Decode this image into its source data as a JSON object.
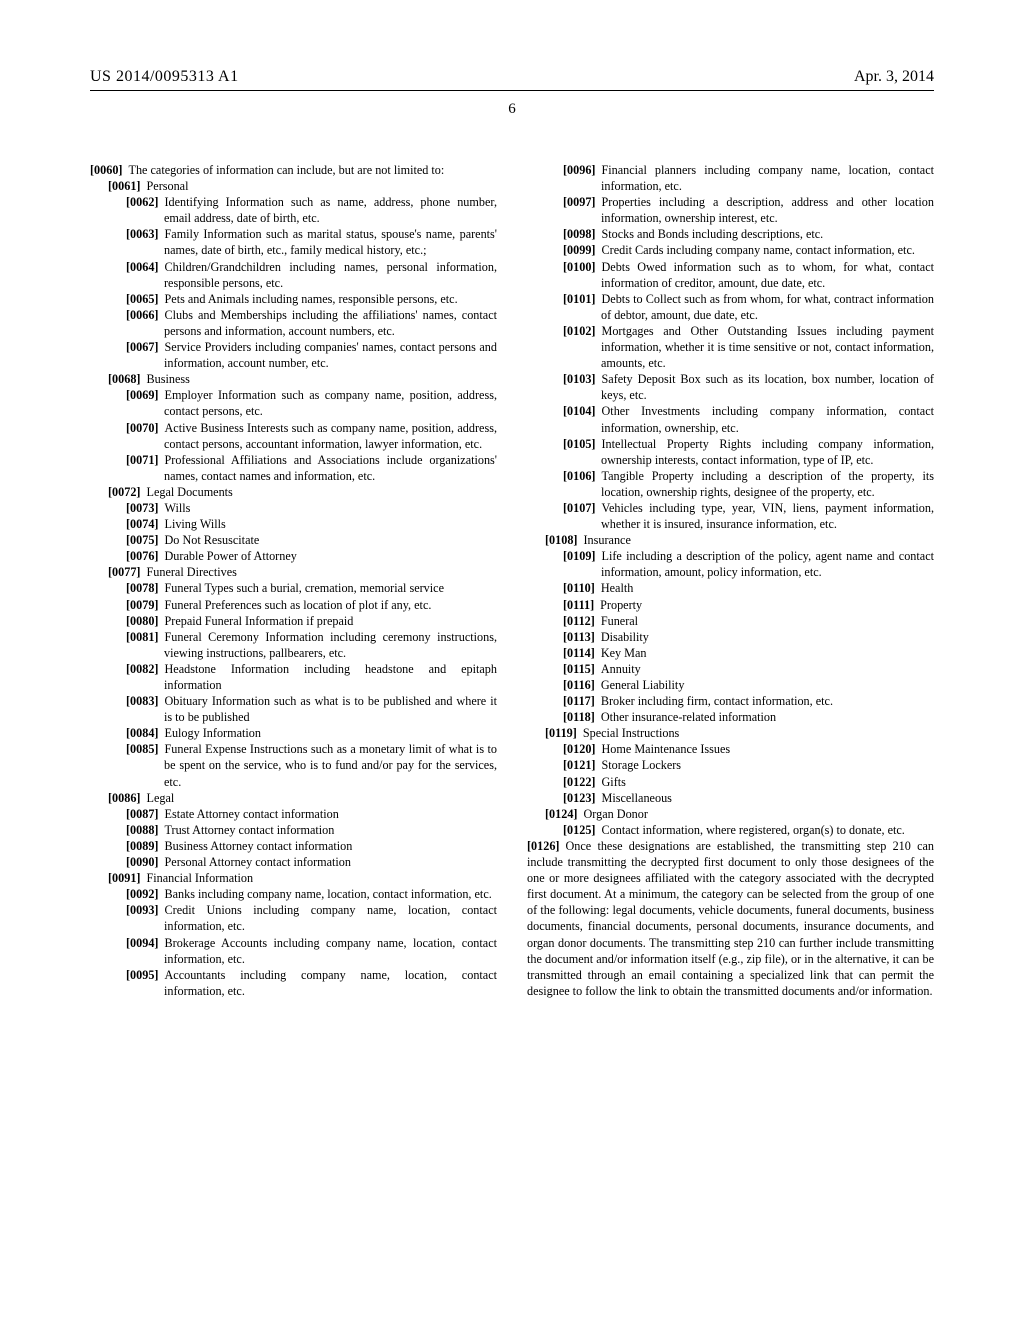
{
  "header": {
    "left": "US 2014/0095313 A1",
    "right": "Apr. 3, 2014",
    "page_number": "6"
  },
  "paragraphs": [
    {
      "num": "[0060]",
      "indent": 0,
      "hang": false,
      "text": "The categories of information can include, but are not limited to:"
    },
    {
      "num": "[0061]",
      "indent": 1,
      "hang": false,
      "text": "Personal"
    },
    {
      "num": "[0062]",
      "indent": 2,
      "hang": true,
      "text": "Identifying Information such as name, address, phone number, email address, date of birth, etc."
    },
    {
      "num": "[0063]",
      "indent": 2,
      "hang": true,
      "text": "Family Information such as marital status, spouse's name, parents' names, date of birth, etc., family medical history, etc.;"
    },
    {
      "num": "[0064]",
      "indent": 2,
      "hang": true,
      "text": "Children/Grandchildren including names, personal information, responsible persons, etc."
    },
    {
      "num": "[0065]",
      "indent": 2,
      "hang": true,
      "text": "Pets and Animals including names, responsible persons, etc."
    },
    {
      "num": "[0066]",
      "indent": 2,
      "hang": true,
      "text": "Clubs and Memberships including the affiliations' names, contact persons and information, account numbers, etc."
    },
    {
      "num": "[0067]",
      "indent": 2,
      "hang": true,
      "text": "Service Providers including companies' names, contact persons and information, account number, etc."
    },
    {
      "num": "[0068]",
      "indent": 1,
      "hang": false,
      "text": "Business"
    },
    {
      "num": "[0069]",
      "indent": 2,
      "hang": true,
      "text": "Employer Information such as company name, position, address, contact persons, etc."
    },
    {
      "num": "[0070]",
      "indent": 2,
      "hang": true,
      "text": "Active Business Interests such as company name, position, address, contact persons, accountant information, lawyer information, etc."
    },
    {
      "num": "[0071]",
      "indent": 2,
      "hang": true,
      "text": "Professional Affiliations and Associations include organizations' names, contact names and information, etc."
    },
    {
      "num": "[0072]",
      "indent": 1,
      "hang": false,
      "text": "Legal Documents"
    },
    {
      "num": "[0073]",
      "indent": 2,
      "hang": false,
      "text": "Wills"
    },
    {
      "num": "[0074]",
      "indent": 2,
      "hang": false,
      "text": "Living Wills"
    },
    {
      "num": "[0075]",
      "indent": 2,
      "hang": false,
      "text": "Do Not Resuscitate"
    },
    {
      "num": "[0076]",
      "indent": 2,
      "hang": false,
      "text": "Durable Power of Attorney"
    },
    {
      "num": "[0077]",
      "indent": 1,
      "hang": false,
      "text": "Funeral Directives"
    },
    {
      "num": "[0078]",
      "indent": 2,
      "hang": true,
      "text": "Funeral Types such a burial, cremation, memorial service"
    },
    {
      "num": "[0079]",
      "indent": 2,
      "hang": true,
      "text": "Funeral Preferences such as location of plot if any, etc."
    },
    {
      "num": "[0080]",
      "indent": 2,
      "hang": false,
      "text": "Prepaid Funeral Information if prepaid"
    },
    {
      "num": "[0081]",
      "indent": 2,
      "hang": true,
      "text": "Funeral Ceremony Information including ceremony instructions, viewing instructions, pallbearers, etc."
    },
    {
      "num": "[0082]",
      "indent": 2,
      "hang": true,
      "text": "Headstone Information including headstone and epitaph information"
    },
    {
      "num": "[0083]",
      "indent": 2,
      "hang": true,
      "text": "Obituary Information such as what is to be published and where it is to be published"
    },
    {
      "num": "[0084]",
      "indent": 2,
      "hang": false,
      "text": "Eulogy Information"
    },
    {
      "num": "[0085]",
      "indent": 2,
      "hang": true,
      "text": "Funeral Expense Instructions such as a monetary limit of what is to be spent on the service, who is to fund and/or pay for the services, etc."
    },
    {
      "num": "[0086]",
      "indent": 1,
      "hang": false,
      "text": "Legal"
    },
    {
      "num": "[0087]",
      "indent": 2,
      "hang": false,
      "text": "Estate Attorney contact information"
    },
    {
      "num": "[0088]",
      "indent": 2,
      "hang": false,
      "text": "Trust Attorney contact information"
    },
    {
      "num": "[0089]",
      "indent": 2,
      "hang": false,
      "text": "Business Attorney contact information"
    },
    {
      "num": "[0090]",
      "indent": 2,
      "hang": false,
      "text": "Personal Attorney contact information"
    },
    {
      "num": "[0091]",
      "indent": 1,
      "hang": false,
      "text": "Financial Information"
    },
    {
      "num": "[0092]",
      "indent": 2,
      "hang": true,
      "text": "Banks including company name, location, contact information, etc."
    },
    {
      "num": "[0093]",
      "indent": 2,
      "hang": true,
      "text": "Credit Unions including company name, location, contact information, etc."
    },
    {
      "num": "[0094]",
      "indent": 2,
      "hang": true,
      "text": "Brokerage Accounts including company name, location, contact information, etc."
    },
    {
      "num": "[0095]",
      "indent": 2,
      "hang": true,
      "text": "Accountants including company name, location, contact information, etc."
    },
    {
      "num": "[0096]",
      "indent": 2,
      "hang": true,
      "text": "Financial planners including company name, location, contact information, etc."
    },
    {
      "num": "[0097]",
      "indent": 2,
      "hang": true,
      "text": "Properties including a description, address and other location information, ownership interest, etc."
    },
    {
      "num": "[0098]",
      "indent": 2,
      "hang": false,
      "text": "Stocks and Bonds including descriptions, etc."
    },
    {
      "num": "[0099]",
      "indent": 2,
      "hang": true,
      "text": "Credit Cards including company name, contact information, etc."
    },
    {
      "num": "[0100]",
      "indent": 2,
      "hang": true,
      "text": "Debts Owed information such as to whom, for what, contact information of creditor, amount, due date, etc."
    },
    {
      "num": "[0101]",
      "indent": 2,
      "hang": true,
      "text": "Debts to Collect such as from whom, for what, contract information of debtor, amount, due date, etc."
    },
    {
      "num": "[0102]",
      "indent": 2,
      "hang": true,
      "text": "Mortgages and Other Outstanding Issues including payment information, whether it is time sensitive or not, contact information, amounts, etc."
    },
    {
      "num": "[0103]",
      "indent": 2,
      "hang": true,
      "text": "Safety Deposit Box such as its location, box number, location of keys, etc."
    },
    {
      "num": "[0104]",
      "indent": 2,
      "hang": true,
      "text": "Other Investments including company information, contact information, ownership, etc."
    },
    {
      "num": "[0105]",
      "indent": 2,
      "hang": true,
      "text": "Intellectual Property Rights including company information, ownership interests, contact information, type of IP, etc."
    },
    {
      "num": "[0106]",
      "indent": 2,
      "hang": true,
      "text": "Tangible Property including a description of the property, its location, ownership rights, designee of the property, etc."
    },
    {
      "num": "[0107]",
      "indent": 2,
      "hang": true,
      "text": "Vehicles including type, year, VIN, liens, payment information, whether it is insured, insurance information, etc."
    },
    {
      "num": "[0108]",
      "indent": 1,
      "hang": false,
      "text": "Insurance"
    },
    {
      "num": "[0109]",
      "indent": 2,
      "hang": true,
      "text": "Life including a description of the policy, agent name and contact information, amount, policy information, etc."
    },
    {
      "num": "[0110]",
      "indent": 2,
      "hang": false,
      "text": "Health"
    },
    {
      "num": "[0111]",
      "indent": 2,
      "hang": false,
      "text": "Property"
    },
    {
      "num": "[0112]",
      "indent": 2,
      "hang": false,
      "text": "Funeral"
    },
    {
      "num": "[0113]",
      "indent": 2,
      "hang": false,
      "text": "Disability"
    },
    {
      "num": "[0114]",
      "indent": 2,
      "hang": false,
      "text": "Key Man"
    },
    {
      "num": "[0115]",
      "indent": 2,
      "hang": false,
      "text": "Annuity"
    },
    {
      "num": "[0116]",
      "indent": 2,
      "hang": false,
      "text": "General Liability"
    },
    {
      "num": "[0117]",
      "indent": 2,
      "hang": true,
      "text": "Broker including firm, contact information, etc."
    },
    {
      "num": "[0118]",
      "indent": 2,
      "hang": false,
      "text": "Other insurance-related information"
    },
    {
      "num": "[0119]",
      "indent": 1,
      "hang": false,
      "text": "Special Instructions"
    },
    {
      "num": "[0120]",
      "indent": 2,
      "hang": false,
      "text": "Home Maintenance Issues"
    },
    {
      "num": "[0121]",
      "indent": 2,
      "hang": false,
      "text": "Storage Lockers"
    },
    {
      "num": "[0122]",
      "indent": 2,
      "hang": false,
      "text": "Gifts"
    },
    {
      "num": "[0123]",
      "indent": 2,
      "hang": false,
      "text": "Miscellaneous"
    },
    {
      "num": "[0124]",
      "indent": 1,
      "hang": false,
      "text": "Organ Donor"
    },
    {
      "num": "[0125]",
      "indent": 2,
      "hang": true,
      "text": "Contact information, where registered, organ(s) to donate, etc."
    },
    {
      "num": "[0126]",
      "indent": 0,
      "hang": false,
      "text": "Once these designations are established, the transmitting step 210 can include transmitting the decrypted first document to only those designees of the one or more designees affiliated with the category associated with the decrypted first document. At a minimum, the category can be selected from the group of one of the following: legal documents, vehicle documents, funeral documents, business documents, financial documents, personal documents, insurance documents, and organ donor documents. The transmitting step 210 can further include transmitting the document and/or information itself (e.g., zip file), or in the alternative, it can be transmitted through an email containing a specialized link that can permit the designee to follow the link to obtain the transmitted documents and/or information."
    }
  ]
}
